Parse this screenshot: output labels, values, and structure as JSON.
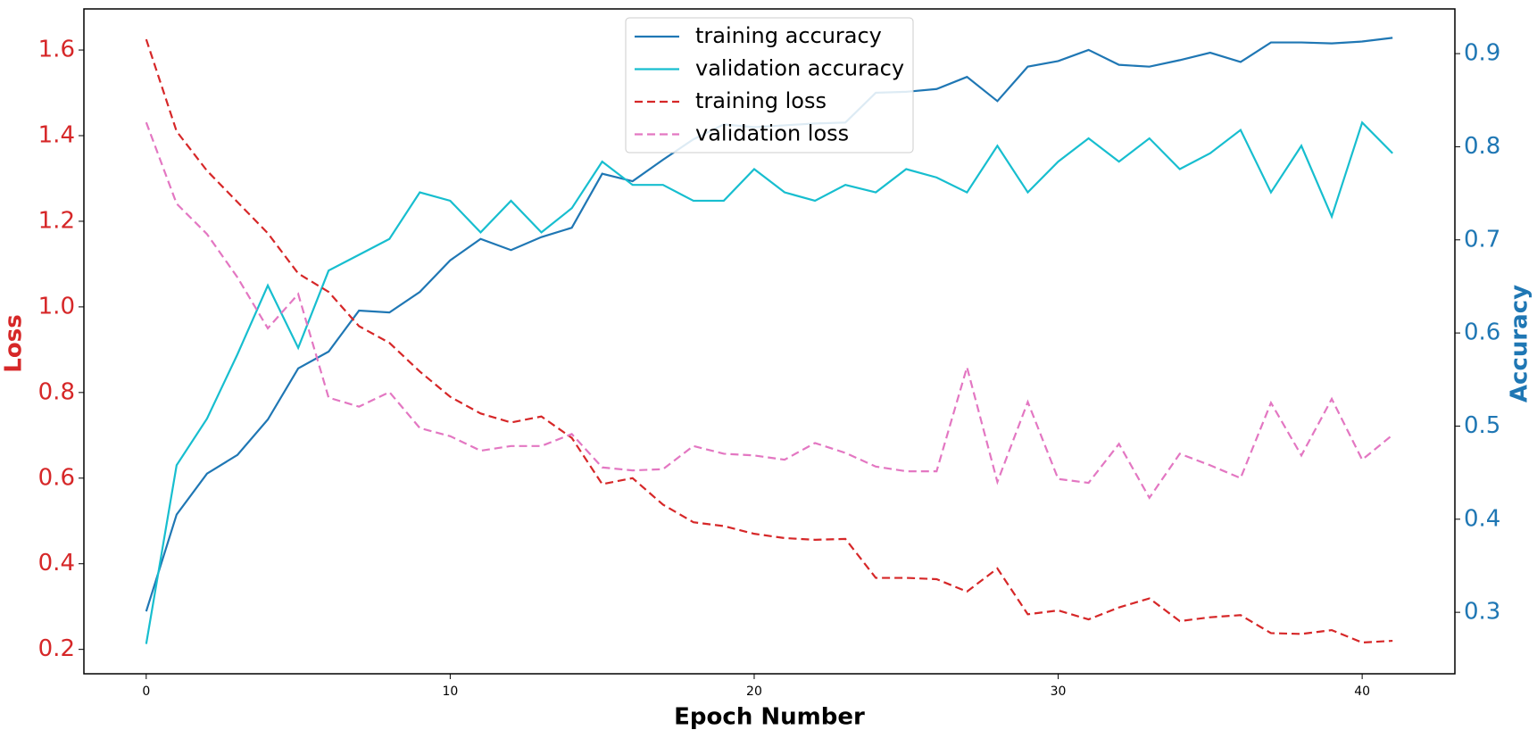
{
  "chart_data": {
    "type": "line",
    "x": [
      0,
      1,
      2,
      3,
      4,
      5,
      6,
      7,
      8,
      9,
      10,
      11,
      12,
      13,
      14,
      15,
      16,
      17,
      18,
      19,
      20,
      21,
      22,
      23,
      24,
      25,
      26,
      27,
      28,
      29,
      30,
      31,
      32,
      33,
      34,
      35,
      36,
      37,
      38,
      39,
      40,
      41
    ],
    "x_label": "Epoch Number",
    "y_label": "Loss",
    "y2_label": "Accuracy",
    "y_label_color": "#d62728",
    "y2_label_color": "#1f77b4",
    "xlim": [
      -2.05,
      43.05
    ],
    "xticks": [
      0,
      10,
      20,
      30,
      40
    ],
    "ylim": [
      0.143,
      1.696
    ],
    "yticks": [
      0.2,
      0.4,
      0.6,
      0.8,
      {
        "value": 1.0,
        "label": "1.0"
      },
      1.2,
      1.4,
      1.6
    ],
    "y2lim": [
      0.234,
      0.948
    ],
    "y2ticks": [
      0.3,
      0.4,
      0.5,
      0.6,
      0.7,
      0.8,
      0.9
    ],
    "legend": "upper center",
    "series": [
      {
        "name": "training accuracy",
        "color": "#1f77b4",
        "axis": "y2",
        "linestyle": "solid",
        "values": [
          0.301,
          0.405,
          0.449,
          0.469,
          0.507,
          0.562,
          0.58,
          0.624,
          0.622,
          0.644,
          0.678,
          0.701,
          0.689,
          0.703,
          0.713,
          0.771,
          0.763,
          0.786,
          0.808,
          0.824,
          0.821,
          0.823,
          0.825,
          0.826,
          0.858,
          0.859,
          0.862,
          0.875,
          0.849,
          0.886,
          0.892,
          0.904,
          0.888,
          0.886,
          0.893,
          0.901,
          0.891,
          0.912,
          0.912,
          0.911,
          0.913,
          0.917
        ]
      },
      {
        "name": "validation accuracy",
        "color": "#17becf",
        "axis": "y2",
        "linestyle": "solid",
        "values": [
          0.266,
          0.458,
          0.508,
          0.577,
          0.651,
          0.584,
          0.667,
          0.684,
          0.701,
          0.751,
          0.742,
          0.708,
          0.742,
          0.708,
          0.734,
          0.784,
          0.759,
          0.759,
          0.742,
          0.742,
          0.776,
          0.751,
          0.742,
          0.759,
          0.751,
          0.776,
          0.767,
          0.751,
          0.801,
          0.751,
          0.784,
          0.809,
          0.784,
          0.809,
          0.776,
          0.793,
          0.818,
          0.751,
          0.801,
          0.725,
          0.826,
          0.793
        ]
      },
      {
        "name": "training loss",
        "color": "#d62728",
        "axis": "y",
        "linestyle": "dashed",
        "values": [
          1.625,
          1.41,
          1.318,
          1.245,
          1.172,
          1.078,
          1.035,
          0.955,
          0.916,
          0.849,
          0.79,
          0.751,
          0.73,
          0.744,
          0.694,
          0.586,
          0.6,
          0.538,
          0.497,
          0.488,
          0.47,
          0.46,
          0.456,
          0.458,
          0.367,
          0.367,
          0.364,
          0.335,
          0.389,
          0.282,
          0.291,
          0.27,
          0.298,
          0.319,
          0.266,
          0.275,
          0.28,
          0.238,
          0.236,
          0.245,
          0.216,
          0.22
        ]
      },
      {
        "name": "validation loss",
        "color": "#e377c2",
        "axis": "y",
        "linestyle": "dashed",
        "values": [
          1.431,
          1.241,
          1.17,
          1.069,
          0.95,
          1.03,
          0.788,
          0.767,
          0.801,
          0.717,
          0.698,
          0.664,
          0.675,
          0.675,
          0.703,
          0.625,
          0.618,
          0.621,
          0.675,
          0.657,
          0.653,
          0.643,
          0.682,
          0.659,
          0.627,
          0.616,
          0.616,
          0.859,
          0.591,
          0.778,
          0.598,
          0.589,
          0.68,
          0.554,
          0.657,
          0.63,
          0.6,
          0.776,
          0.653,
          0.785,
          0.643,
          0.701
        ]
      }
    ]
  }
}
